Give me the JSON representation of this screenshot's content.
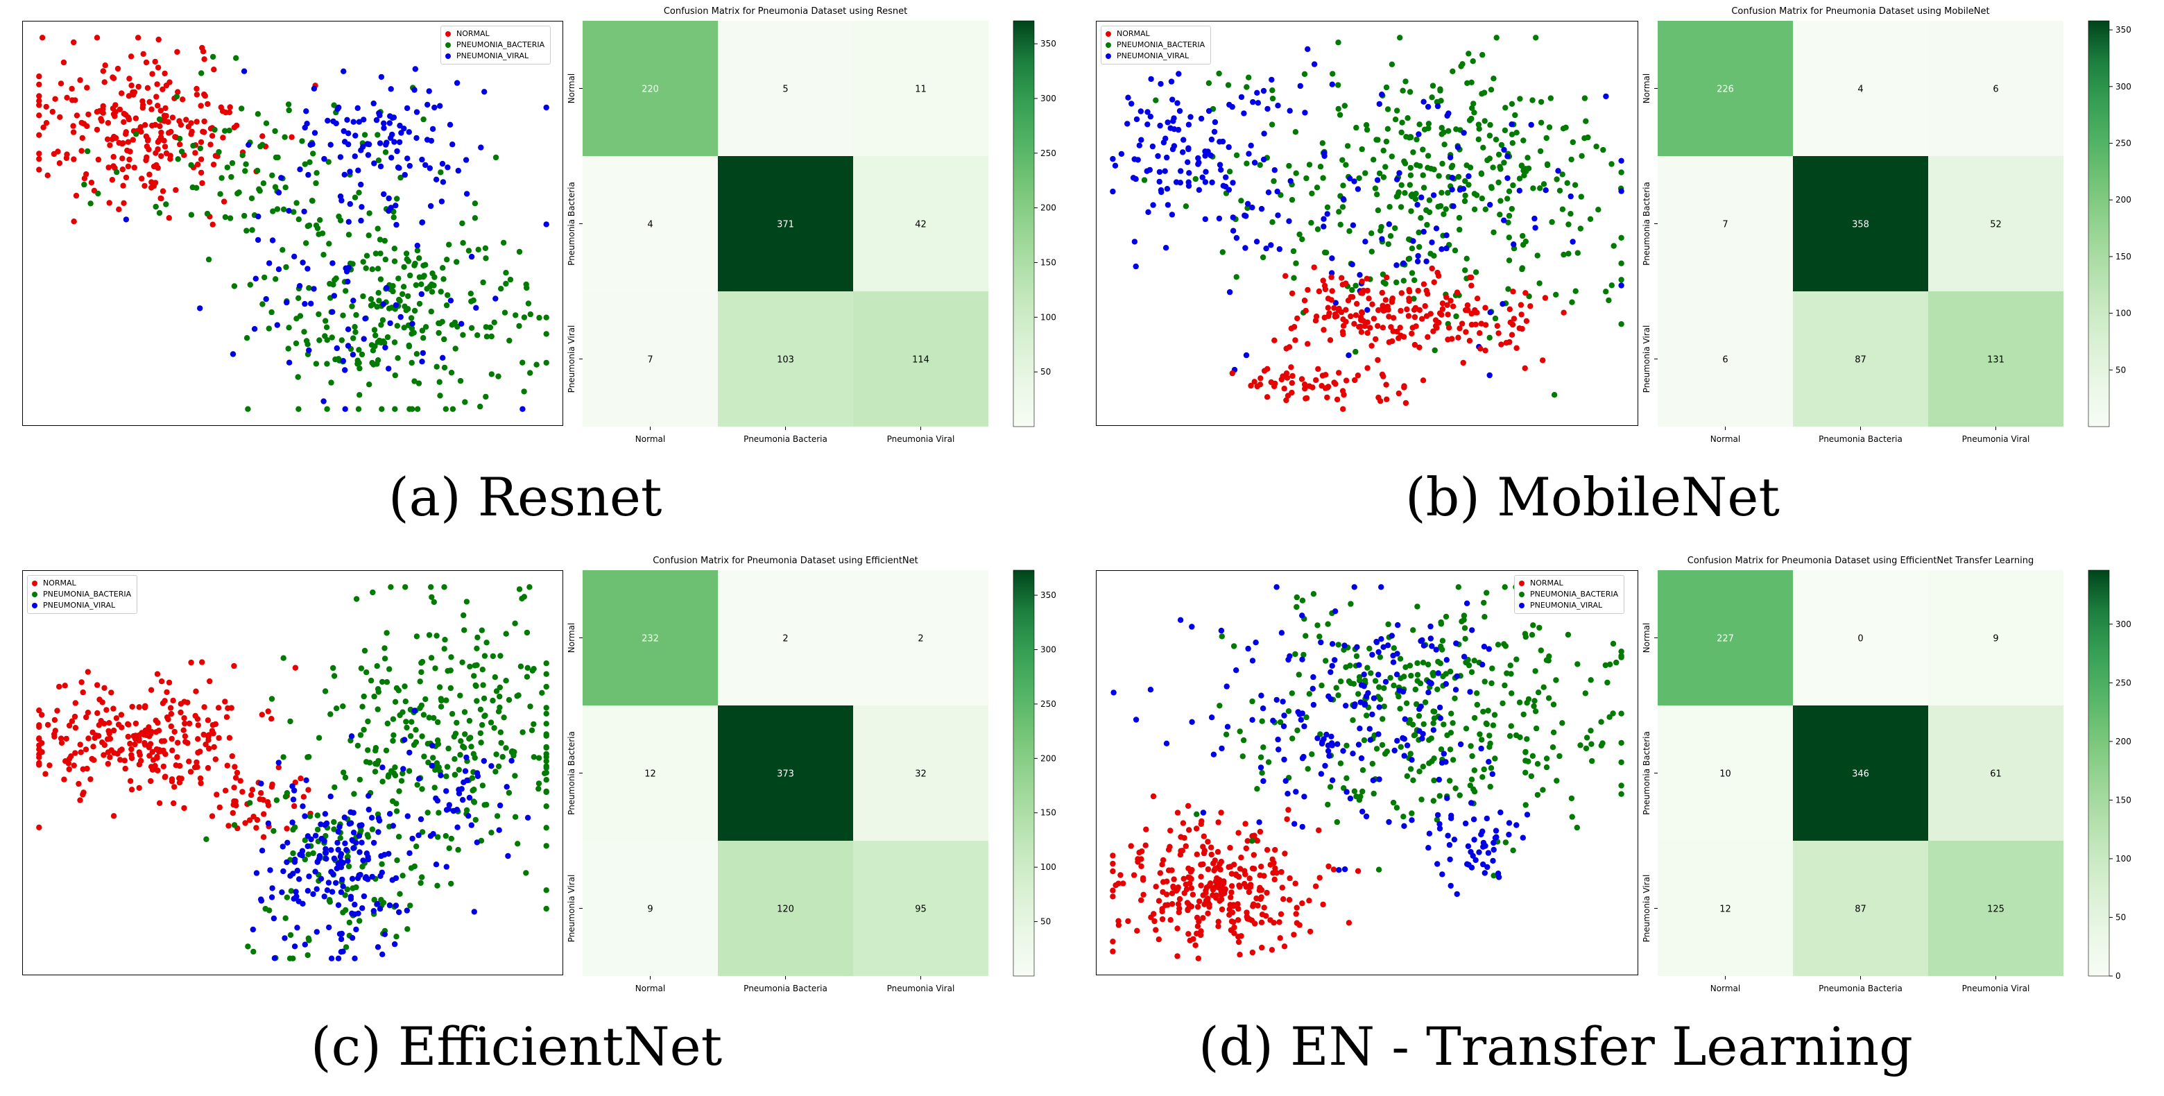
{
  "chart_data": [
    {
      "type": "scatter",
      "legend": [
        "NORMAL",
        "PNEUMONIA_BACTERIA",
        "PNEUMONIA_VIRAL"
      ],
      "legend_position": "top-right",
      "caption": "(a) Resnet"
    },
    {
      "type": "heatmap",
      "title": "Confusion Matrix for Pneumonia Dataset using Resnet",
      "xticks": [
        "Normal",
        "Pneumonia Bacteria",
        "Pneumonia Viral"
      ],
      "yticks": [
        "Normal",
        "Pneumonia Bacteria",
        "Pneumonia Viral"
      ],
      "values": [
        [
          220,
          5,
          11
        ],
        [
          4,
          371,
          42
        ],
        [
          7,
          103,
          114
        ]
      ],
      "colorbar": {
        "ticks": [
          50,
          100,
          150,
          200,
          250,
          300,
          350
        ],
        "min": 0,
        "max": 371
      }
    },
    {
      "type": "scatter",
      "legend": [
        "NORMAL",
        "PNEUMONIA_BACTERIA",
        "PNEUMONIA_VIRAL"
      ],
      "legend_position": "top-left",
      "caption": "(b) MobileNet"
    },
    {
      "type": "heatmap",
      "title": "Confusion Matrix for Pneumonia Dataset using MobileNet",
      "xticks": [
        "Normal",
        "Pneumonia Bacteria",
        "Pneumonia Viral"
      ],
      "yticks": [
        "Normal",
        "Pneumonia Bacteria",
        "Pneumonia Viral"
      ],
      "values": [
        [
          226,
          4,
          6
        ],
        [
          7,
          358,
          52
        ],
        [
          6,
          87,
          131
        ]
      ],
      "colorbar": {
        "ticks": [
          50,
          100,
          150,
          200,
          250,
          300,
          350
        ],
        "min": 0,
        "max": 358
      }
    },
    {
      "type": "scatter",
      "legend": [
        "NORMAL",
        "PNEUMONIA_BACTERIA",
        "PNEUMONIA_VIRAL"
      ],
      "legend_position": "top-left",
      "caption": "(c) EfficientNet"
    },
    {
      "type": "heatmap",
      "title": "Confusion Matrix for Pneumonia Dataset using EfficientNet",
      "xticks": [
        "Normal",
        "Pneumonia Bacteria",
        "Pneumonia Viral"
      ],
      "yticks": [
        "Normal",
        "Pneumonia Bacteria",
        "Pneumonia Viral"
      ],
      "values": [
        [
          232,
          2,
          2
        ],
        [
          12,
          373,
          32
        ],
        [
          9,
          120,
          95
        ]
      ],
      "colorbar": {
        "ticks": [
          50,
          100,
          150,
          200,
          250,
          300,
          350
        ],
        "min": 0,
        "max": 373
      }
    },
    {
      "type": "scatter",
      "legend": [
        "NORMAL",
        "PNEUMONIA_BACTERIA",
        "PNEUMONIA_VIRAL"
      ],
      "legend_position": "top-right",
      "caption": "(d) EN - Transfer Learning"
    },
    {
      "type": "heatmap",
      "title": "Confusion Matrix for Pneumonia Dataset using EfficientNet Transfer Learning",
      "xticks": [
        "Normal",
        "Pneumonia Bacteria",
        "Pneumonia Viral"
      ],
      "yticks": [
        "Normal",
        "Pneumonia Bacteria",
        "Pneumonia Viral"
      ],
      "values": [
        [
          227,
          0,
          9
        ],
        [
          10,
          346,
          61
        ],
        [
          12,
          87,
          125
        ]
      ],
      "colorbar": {
        "ticks": [
          0,
          50,
          100,
          150,
          200,
          250,
          300
        ],
        "min": 0,
        "max": 346
      }
    }
  ],
  "colors": {
    "normal": "#e60000",
    "bacteria": "#007a00",
    "viral": "#0000e6"
  }
}
